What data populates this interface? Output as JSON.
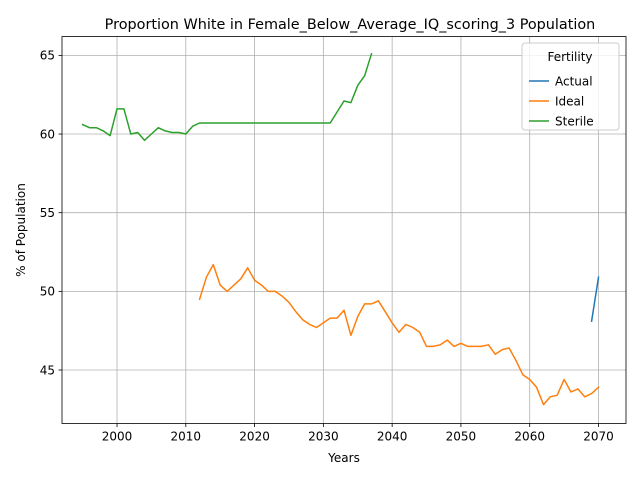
{
  "chart_data": {
    "type": "line",
    "title": "Proportion White in Female_Below_Average_IQ_scoring_3 Population",
    "xlabel": "Years",
    "ylabel": "% of Population",
    "xlim": [
      1992,
      2074
    ],
    "ylim": [
      41.6,
      66.2
    ],
    "x_ticks": [
      2000,
      2010,
      2020,
      2030,
      2040,
      2050,
      2060,
      2070
    ],
    "y_ticks": [
      45,
      50,
      55,
      60,
      65
    ],
    "grid": true,
    "legend": {
      "title": "Fertility",
      "placement": "top-right"
    },
    "series": [
      {
        "name": "Actual",
        "color": "#1f77b4",
        "x": [
          2069,
          2070
        ],
        "y": [
          48.1,
          50.9
        ]
      },
      {
        "name": "Ideal",
        "color": "#ff7f0e",
        "x": [
          2012,
          2013,
          2014,
          2015,
          2016,
          2017,
          2018,
          2019,
          2020,
          2021,
          2022,
          2023,
          2024,
          2025,
          2026,
          2027,
          2028,
          2029,
          2030,
          2031,
          2032,
          2033,
          2034,
          2035,
          2036,
          2037,
          2038,
          2039,
          2040,
          2041,
          2042,
          2043,
          2044,
          2045,
          2046,
          2047,
          2048,
          2049,
          2050,
          2051,
          2052,
          2053,
          2054,
          2055,
          2056,
          2057,
          2058,
          2059,
          2060,
          2061,
          2062,
          2063,
          2064,
          2065,
          2066,
          2067,
          2068,
          2069,
          2070
        ],
        "y": [
          49.5,
          50.9,
          51.7,
          50.4,
          50.0,
          50.4,
          50.8,
          51.5,
          50.7,
          50.4,
          50.0,
          50.0,
          49.7,
          49.3,
          48.7,
          48.2,
          47.9,
          47.7,
          48.0,
          48.3,
          48.3,
          48.8,
          47.2,
          48.4,
          49.2,
          49.2,
          49.4,
          48.7,
          48.0,
          47.4,
          47.9,
          47.7,
          47.4,
          46.5,
          46.5,
          46.6,
          46.9,
          46.5,
          46.7,
          46.5,
          46.5,
          46.5,
          46.6,
          46.0,
          46.3,
          46.4,
          45.6,
          44.7,
          44.4,
          43.9,
          42.8,
          43.3,
          43.4,
          44.4,
          43.6,
          43.8,
          43.3,
          43.5,
          43.9
        ]
      },
      {
        "name": "Sterile",
        "color": "#2ca02c",
        "x": [
          1995,
          1996,
          1997,
          1998,
          1999,
          2000,
          2001,
          2002,
          2003,
          2004,
          2005,
          2006,
          2007,
          2008,
          2009,
          2010,
          2011,
          2012,
          2013,
          2014,
          2015,
          2016,
          2017,
          2018,
          2019,
          2020,
          2021,
          2022,
          2023,
          2024,
          2025,
          2026,
          2027,
          2028,
          2029,
          2030,
          2031,
          2032,
          2033,
          2034,
          2035,
          2036,
          2037
        ],
        "y": [
          60.6,
          60.4,
          60.4,
          60.2,
          59.9,
          61.6,
          61.6,
          60.0,
          60.1,
          59.6,
          60.0,
          60.4,
          60.2,
          60.1,
          60.1,
          60.0,
          60.5,
          60.7,
          60.7,
          60.7,
          60.7,
          60.7,
          60.7,
          60.7,
          60.7,
          60.7,
          60.7,
          60.7,
          60.7,
          60.7,
          60.7,
          60.7,
          60.7,
          60.7,
          60.7,
          60.7,
          60.7,
          61.4,
          62.1,
          62.0,
          63.1,
          63.7,
          65.1
        ]
      }
    ]
  }
}
